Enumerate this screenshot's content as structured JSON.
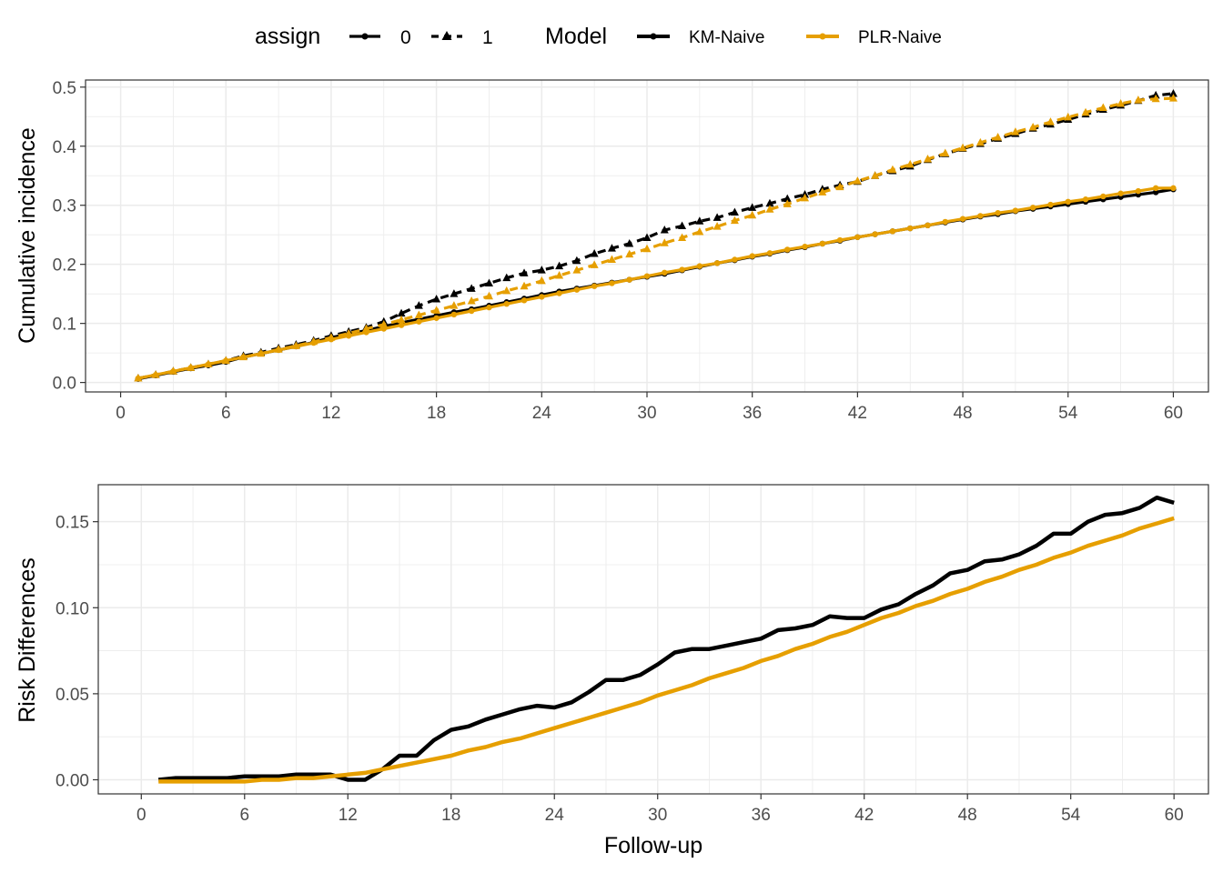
{
  "legend": {
    "assign_title": "assign",
    "assign_levels": [
      "0",
      "1"
    ],
    "model_title": "Model",
    "model_levels": [
      "KM-Naive",
      "PLR-Naive"
    ]
  },
  "colors": {
    "km": "#000000",
    "plr": "#E69F00",
    "grid": "#EBEBEB",
    "panel_border": "#333333",
    "tick_text": "#4D4D4D"
  },
  "chart_data": [
    {
      "type": "line",
      "title": "",
      "xlabel": "",
      "ylabel": "Cumulative incidence",
      "xlim": [
        -2,
        62
      ],
      "ylim": [
        -0.016,
        0.512
      ],
      "xticks": [
        0,
        6,
        12,
        18,
        24,
        30,
        36,
        42,
        48,
        54,
        60
      ],
      "yticks": [
        0.0,
        0.1,
        0.2,
        0.3,
        0.4,
        0.5
      ],
      "ytick_labels": [
        "0.0",
        "0.1",
        "0.2",
        "0.3",
        "0.4",
        "0.5"
      ],
      "x": [
        1,
        2,
        3,
        4,
        5,
        6,
        7,
        8,
        9,
        10,
        11,
        12,
        13,
        14,
        15,
        16,
        17,
        18,
        19,
        20,
        21,
        22,
        23,
        24,
        25,
        26,
        27,
        28,
        29,
        30,
        31,
        32,
        33,
        34,
        35,
        36,
        37,
        38,
        39,
        40,
        41,
        42,
        43,
        44,
        45,
        46,
        47,
        48,
        49,
        50,
        51,
        52,
        53,
        54,
        55,
        56,
        57,
        58,
        59,
        60
      ],
      "series": [
        {
          "model": "KM-Naive",
          "assign": "0",
          "values": [
            0.006,
            0.012,
            0.018,
            0.024,
            0.029,
            0.035,
            0.043,
            0.049,
            0.055,
            0.061,
            0.068,
            0.076,
            0.082,
            0.088,
            0.095,
            0.101,
            0.107,
            0.113,
            0.119,
            0.124,
            0.13,
            0.136,
            0.142,
            0.148,
            0.154,
            0.159,
            0.164,
            0.169,
            0.174,
            0.179,
            0.184,
            0.19,
            0.196,
            0.202,
            0.207,
            0.213,
            0.218,
            0.224,
            0.229,
            0.235,
            0.24,
            0.246,
            0.251,
            0.256,
            0.261,
            0.266,
            0.271,
            0.276,
            0.281,
            0.285,
            0.29,
            0.294,
            0.298,
            0.302,
            0.306,
            0.31,
            0.314,
            0.318,
            0.322,
            0.327
          ]
        },
        {
          "model": "KM-Naive",
          "assign": "1",
          "values": [
            0.007,
            0.013,
            0.019,
            0.025,
            0.031,
            0.037,
            0.045,
            0.051,
            0.058,
            0.064,
            0.071,
            0.079,
            0.086,
            0.093,
            0.103,
            0.117,
            0.13,
            0.141,
            0.15,
            0.159,
            0.168,
            0.177,
            0.185,
            0.19,
            0.197,
            0.206,
            0.218,
            0.227,
            0.235,
            0.245,
            0.258,
            0.265,
            0.273,
            0.279,
            0.288,
            0.296,
            0.303,
            0.311,
            0.318,
            0.327,
            0.334,
            0.34,
            0.35,
            0.358,
            0.366,
            0.377,
            0.387,
            0.396,
            0.404,
            0.413,
            0.421,
            0.43,
            0.437,
            0.445,
            0.454,
            0.462,
            0.469,
            0.477,
            0.486,
            0.489
          ]
        },
        {
          "model": "PLR-Naive",
          "assign": "0",
          "values": [
            0.007,
            0.013,
            0.019,
            0.025,
            0.031,
            0.037,
            0.043,
            0.049,
            0.055,
            0.061,
            0.067,
            0.073,
            0.079,
            0.085,
            0.091,
            0.097,
            0.103,
            0.109,
            0.115,
            0.121,
            0.127,
            0.133,
            0.139,
            0.145,
            0.151,
            0.157,
            0.163,
            0.168,
            0.174,
            0.18,
            0.186,
            0.191,
            0.197,
            0.202,
            0.208,
            0.214,
            0.219,
            0.225,
            0.23,
            0.235,
            0.241,
            0.246,
            0.251,
            0.256,
            0.261,
            0.266,
            0.272,
            0.277,
            0.282,
            0.287,
            0.291,
            0.296,
            0.301,
            0.306,
            0.31,
            0.315,
            0.32,
            0.324,
            0.329,
            0.329
          ]
        },
        {
          "model": "PLR-Naive",
          "assign": "1",
          "values": [
            0.007,
            0.013,
            0.019,
            0.025,
            0.031,
            0.037,
            0.043,
            0.049,
            0.056,
            0.062,
            0.069,
            0.076,
            0.083,
            0.091,
            0.098,
            0.106,
            0.114,
            0.122,
            0.13,
            0.138,
            0.146,
            0.155,
            0.163,
            0.172,
            0.181,
            0.19,
            0.199,
            0.208,
            0.217,
            0.226,
            0.236,
            0.245,
            0.255,
            0.264,
            0.274,
            0.283,
            0.293,
            0.302,
            0.312,
            0.322,
            0.331,
            0.341,
            0.35,
            0.36,
            0.369,
            0.378,
            0.388,
            0.397,
            0.406,
            0.415,
            0.424,
            0.432,
            0.441,
            0.449,
            0.457,
            0.465,
            0.472,
            0.478,
            0.48,
            0.481
          ]
        }
      ]
    },
    {
      "type": "line",
      "title": "",
      "xlabel": "Follow-up",
      "ylabel": "Risk Differences",
      "xlim": [
        -2.5,
        62
      ],
      "ylim": [
        -0.0082,
        0.1715
      ],
      "xticks": [
        0,
        6,
        12,
        18,
        24,
        30,
        36,
        42,
        48,
        54,
        60
      ],
      "yticks": [
        0.0,
        0.05,
        0.1,
        0.15
      ],
      "ytick_labels": [
        "0.00",
        "0.05",
        "0.10",
        "0.15"
      ],
      "x": [
        1,
        2,
        3,
        4,
        5,
        6,
        7,
        8,
        9,
        10,
        11,
        12,
        13,
        14,
        15,
        16,
        17,
        18,
        19,
        20,
        21,
        22,
        23,
        24,
        25,
        26,
        27,
        28,
        29,
        30,
        31,
        32,
        33,
        34,
        35,
        36,
        37,
        38,
        39,
        40,
        41,
        42,
        43,
        44,
        45,
        46,
        47,
        48,
        49,
        50,
        51,
        52,
        53,
        54,
        55,
        56,
        57,
        58,
        59,
        60
      ],
      "series": [
        {
          "model": "KM-Naive",
          "values": [
            0.0,
            0.001,
            0.001,
            0.001,
            0.001,
            0.002,
            0.002,
            0.002,
            0.003,
            0.003,
            0.003,
            0.0,
            0.0,
            0.006,
            0.014,
            0.014,
            0.023,
            0.029,
            0.031,
            0.035,
            0.038,
            0.041,
            0.043,
            0.042,
            0.045,
            0.051,
            0.058,
            0.058,
            0.061,
            0.067,
            0.074,
            0.076,
            0.076,
            0.078,
            0.08,
            0.082,
            0.087,
            0.088,
            0.09,
            0.095,
            0.094,
            0.094,
            0.099,
            0.102,
            0.108,
            0.113,
            0.12,
            0.122,
            0.127,
            0.128,
            0.131,
            0.136,
            0.143,
            0.143,
            0.15,
            0.154,
            0.155,
            0.158,
            0.164,
            0.161
          ]
        },
        {
          "model": "PLR-Naive",
          "values": [
            -0.001,
            -0.001,
            -0.001,
            -0.001,
            -0.001,
            -0.001,
            0.0,
            0.0,
            0.001,
            0.001,
            0.002,
            0.003,
            0.004,
            0.006,
            0.008,
            0.01,
            0.012,
            0.014,
            0.017,
            0.019,
            0.022,
            0.024,
            0.027,
            0.03,
            0.033,
            0.036,
            0.039,
            0.042,
            0.045,
            0.049,
            0.052,
            0.055,
            0.059,
            0.062,
            0.065,
            0.069,
            0.072,
            0.076,
            0.079,
            0.083,
            0.086,
            0.09,
            0.094,
            0.097,
            0.101,
            0.104,
            0.108,
            0.111,
            0.115,
            0.118,
            0.122,
            0.125,
            0.129,
            0.132,
            0.136,
            0.139,
            0.142,
            0.146,
            0.149,
            0.152
          ]
        }
      ]
    }
  ]
}
